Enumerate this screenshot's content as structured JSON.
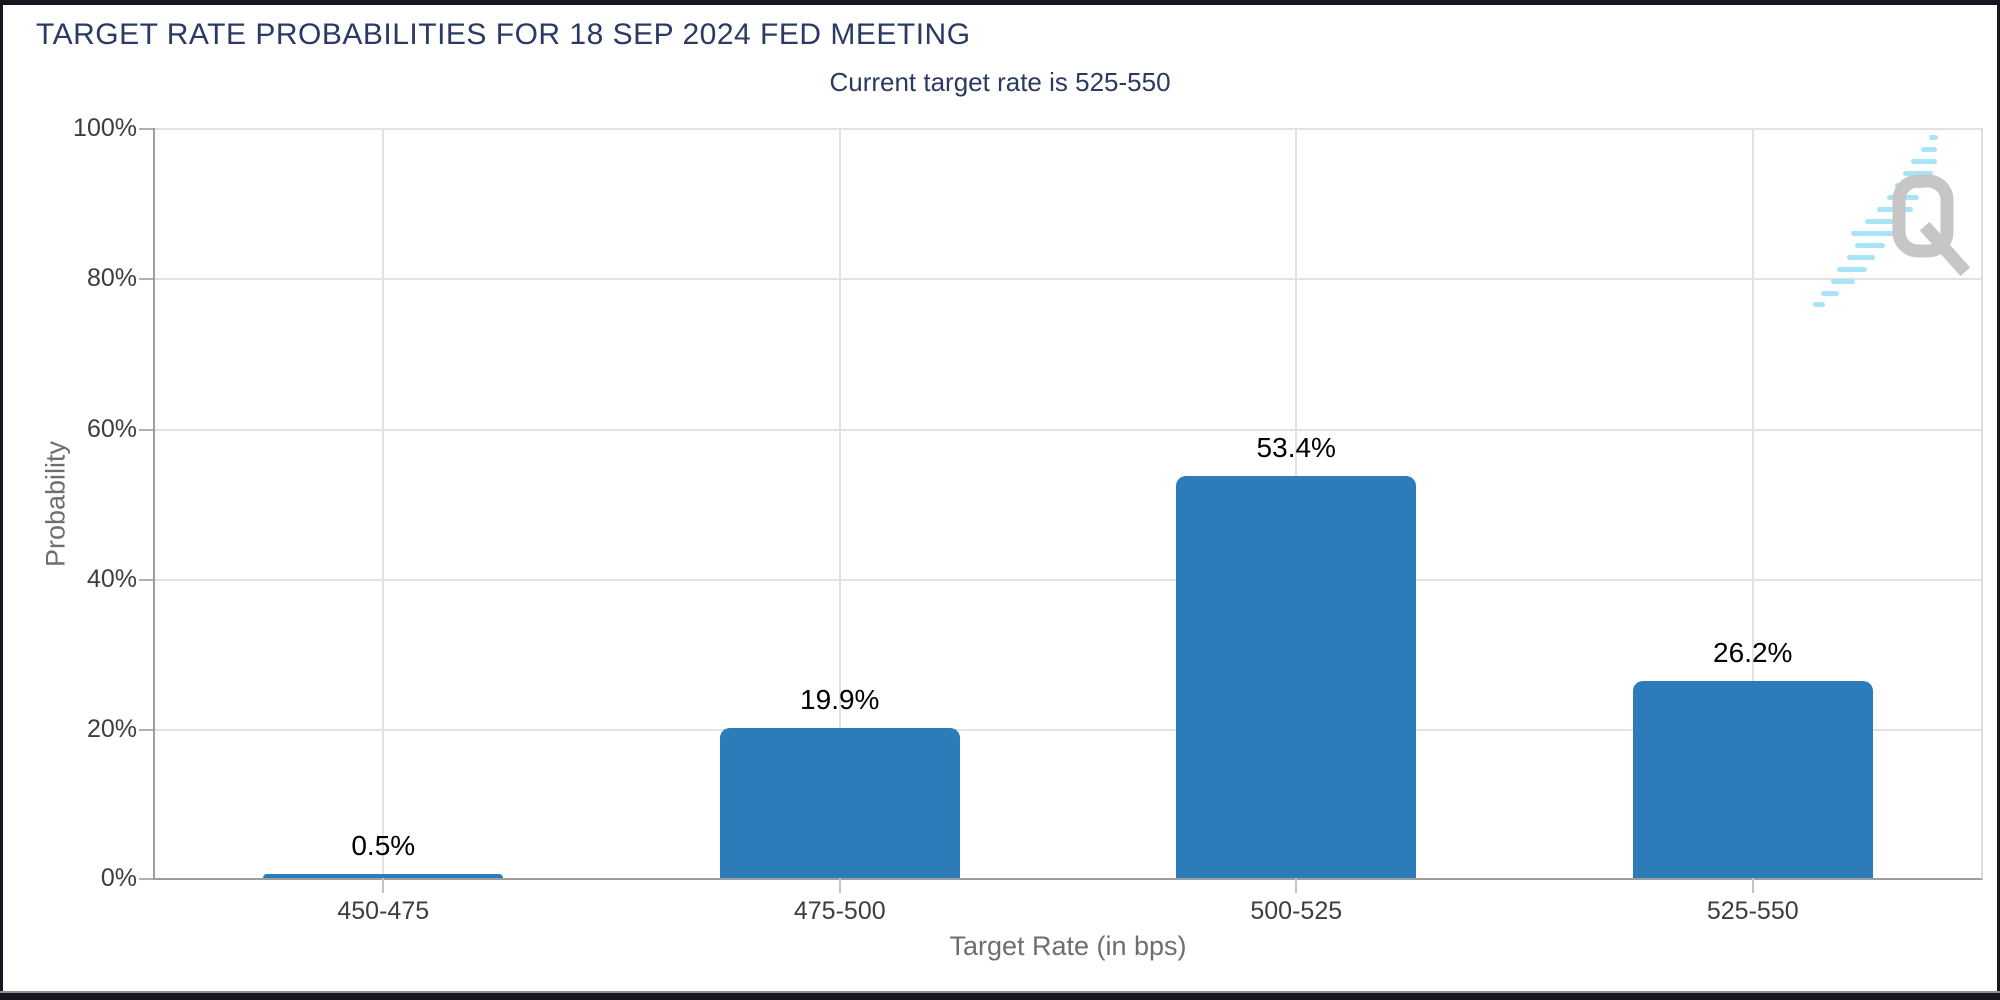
{
  "header": {
    "title": "TARGET RATE PROBABILITIES FOR 18 SEP 2024 FED MEETING",
    "subtitle": "Current target rate is 525-550"
  },
  "chart_data": {
    "type": "bar",
    "title": "TARGET RATE PROBABILITIES FOR 18 SEP 2024 FED MEETING",
    "subtitle": "Current target rate is 525-550",
    "categories": [
      "450-475",
      "475-500",
      "500-525",
      "525-550"
    ],
    "values": [
      0.5,
      19.9,
      53.4,
      26.2
    ],
    "value_labels": [
      "0.5%",
      "19.9%",
      "53.4%",
      "26.2%"
    ],
    "xlabel": "Target Rate (in bps)",
    "ylabel": "Probability",
    "ylim": [
      0,
      100
    ],
    "yticks": [
      "100%",
      "80%",
      "60%",
      "40%",
      "20%",
      "0%"
    ],
    "grid": true,
    "legend": "none",
    "bar_color": "#2b7cb9"
  },
  "colors": {
    "title_navy": "#2b3a63",
    "bar_blue": "#2b7cb9",
    "gridline": "#e2e2e2",
    "axis_line": "#9e9e9e",
    "tick_text": "#3d3d3d",
    "axis_title_text": "#6e6e6e",
    "frame_dark": "#16161e",
    "logo_gray": "#c6c6c6",
    "logo_blue": "#a9e3f7"
  },
  "branding": {
    "logo": "Q watermark with light blue speed-line dashes"
  }
}
